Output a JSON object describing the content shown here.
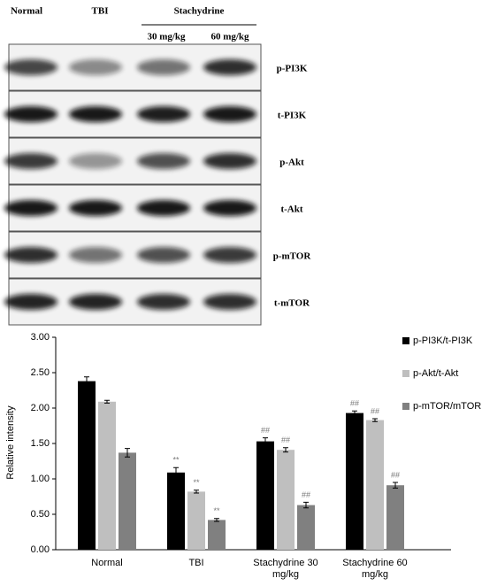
{
  "blot": {
    "header": {
      "lanes": [
        "Normal",
        "TBI"
      ],
      "group": "Stachydrine",
      "doses": [
        "30 mg/kg",
        "60 mg/kg"
      ]
    },
    "rows": [
      "p-PI3K",
      "t-PI3K",
      "p-Akt",
      "t-Akt",
      "p-mTOR",
      "t-mTOR"
    ]
  },
  "chart_data": {
    "type": "bar",
    "y_label": "Relative intensity",
    "categories": [
      "Normal",
      "TBI",
      "Stachydrine 30 mg/kg",
      "Stachydrine 60 mg/kg"
    ],
    "series": [
      {
        "name": "p-PI3K/t-PI3K",
        "color": "#000000",
        "values": [
          2.38,
          1.09,
          1.53,
          1.93
        ],
        "errors": [
          0.06,
          0.07,
          0.05,
          0.03
        ],
        "annotations": [
          null,
          "**",
          "##",
          "##"
        ]
      },
      {
        "name": "p-Akt/t-Akt",
        "color": "#bfbfbf",
        "values": [
          2.09,
          0.82,
          1.41,
          1.83
        ],
        "errors": [
          0.02,
          0.02,
          0.03,
          0.02
        ],
        "annotations": [
          null,
          "**",
          "##",
          "##"
        ]
      },
      {
        "name": "p-mTOR/mTOR",
        "color": "#808080",
        "values": [
          1.37,
          0.42,
          0.63,
          0.91
        ],
        "errors": [
          0.06,
          0.02,
          0.04,
          0.04
        ],
        "annotations": [
          null,
          "**",
          "##",
          "##"
        ]
      }
    ],
    "ylim": [
      0,
      3
    ],
    "yticks": [
      {
        "value": 0,
        "label": "0.00"
      },
      {
        "value": 0.5,
        "label": "0.50"
      },
      {
        "value": 1,
        "label": "1.00"
      },
      {
        "value": 1.5,
        "label": "1.50"
      },
      {
        "value": 2,
        "label": "2.00"
      },
      {
        "value": 2.5,
        "label": "2.50"
      },
      {
        "value": 3,
        "label": "3.00"
      }
    ],
    "legend": "right"
  }
}
